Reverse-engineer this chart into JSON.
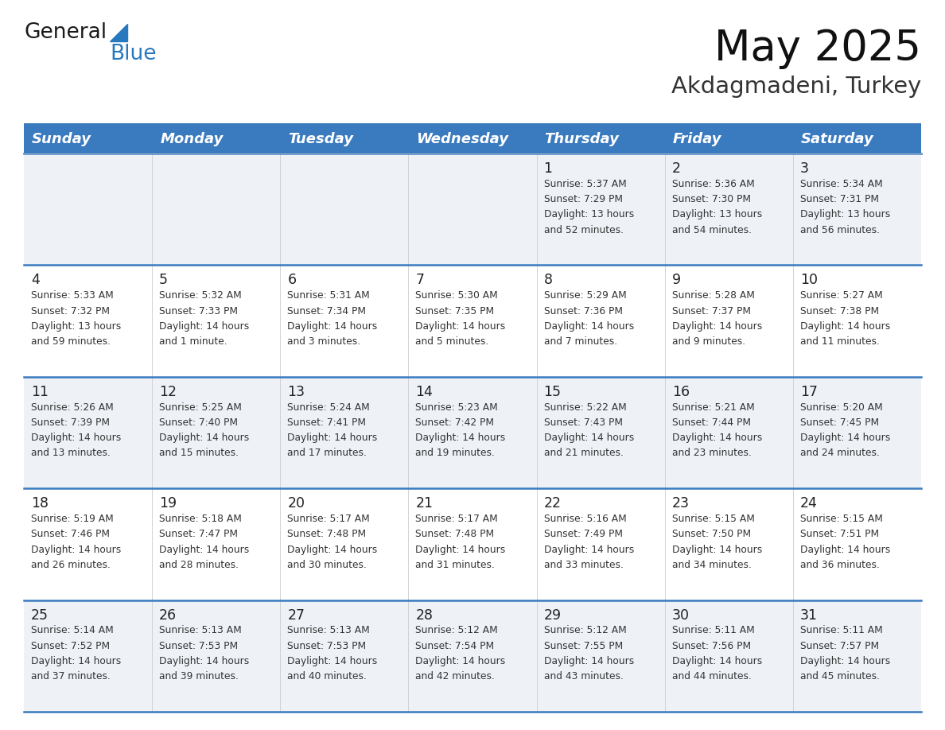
{
  "title": "May 2025",
  "subtitle": "Akdagmadeni, Turkey",
  "header_bg": "#3a7abf",
  "header_text": "#ffffff",
  "header_days": [
    "Sunday",
    "Monday",
    "Tuesday",
    "Wednesday",
    "Thursday",
    "Friday",
    "Saturday"
  ],
  "row_bg_even": "#eef2f7",
  "row_bg_odd": "#ffffff",
  "separator_color": "#3a7abf",
  "day_number_color": "#222222",
  "text_color": "#333333",
  "logo_general_color": "#1a1a1a",
  "logo_blue_color": "#2878bf",
  "calendar_data": [
    {
      "day": 1,
      "col": 4,
      "row": 0,
      "sunrise": "5:37 AM",
      "sunset": "7:29 PM",
      "daylight": "13 hours and 52 minutes."
    },
    {
      "day": 2,
      "col": 5,
      "row": 0,
      "sunrise": "5:36 AM",
      "sunset": "7:30 PM",
      "daylight": "13 hours and 54 minutes."
    },
    {
      "day": 3,
      "col": 6,
      "row": 0,
      "sunrise": "5:34 AM",
      "sunset": "7:31 PM",
      "daylight": "13 hours and 56 minutes."
    },
    {
      "day": 4,
      "col": 0,
      "row": 1,
      "sunrise": "5:33 AM",
      "sunset": "7:32 PM",
      "daylight": "13 hours and 59 minutes."
    },
    {
      "day": 5,
      "col": 1,
      "row": 1,
      "sunrise": "5:32 AM",
      "sunset": "7:33 PM",
      "daylight": "14 hours and 1 minute."
    },
    {
      "day": 6,
      "col": 2,
      "row": 1,
      "sunrise": "5:31 AM",
      "sunset": "7:34 PM",
      "daylight": "14 hours and 3 minutes."
    },
    {
      "day": 7,
      "col": 3,
      "row": 1,
      "sunrise": "5:30 AM",
      "sunset": "7:35 PM",
      "daylight": "14 hours and 5 minutes."
    },
    {
      "day": 8,
      "col": 4,
      "row": 1,
      "sunrise": "5:29 AM",
      "sunset": "7:36 PM",
      "daylight": "14 hours and 7 minutes."
    },
    {
      "day": 9,
      "col": 5,
      "row": 1,
      "sunrise": "5:28 AM",
      "sunset": "7:37 PM",
      "daylight": "14 hours and 9 minutes."
    },
    {
      "day": 10,
      "col": 6,
      "row": 1,
      "sunrise": "5:27 AM",
      "sunset": "7:38 PM",
      "daylight": "14 hours and 11 minutes."
    },
    {
      "day": 11,
      "col": 0,
      "row": 2,
      "sunrise": "5:26 AM",
      "sunset": "7:39 PM",
      "daylight": "14 hours and 13 minutes."
    },
    {
      "day": 12,
      "col": 1,
      "row": 2,
      "sunrise": "5:25 AM",
      "sunset": "7:40 PM",
      "daylight": "14 hours and 15 minutes."
    },
    {
      "day": 13,
      "col": 2,
      "row": 2,
      "sunrise": "5:24 AM",
      "sunset": "7:41 PM",
      "daylight": "14 hours and 17 minutes."
    },
    {
      "day": 14,
      "col": 3,
      "row": 2,
      "sunrise": "5:23 AM",
      "sunset": "7:42 PM",
      "daylight": "14 hours and 19 minutes."
    },
    {
      "day": 15,
      "col": 4,
      "row": 2,
      "sunrise": "5:22 AM",
      "sunset": "7:43 PM",
      "daylight": "14 hours and 21 minutes."
    },
    {
      "day": 16,
      "col": 5,
      "row": 2,
      "sunrise": "5:21 AM",
      "sunset": "7:44 PM",
      "daylight": "14 hours and 23 minutes."
    },
    {
      "day": 17,
      "col": 6,
      "row": 2,
      "sunrise": "5:20 AM",
      "sunset": "7:45 PM",
      "daylight": "14 hours and 24 minutes."
    },
    {
      "day": 18,
      "col": 0,
      "row": 3,
      "sunrise": "5:19 AM",
      "sunset": "7:46 PM",
      "daylight": "14 hours and 26 minutes."
    },
    {
      "day": 19,
      "col": 1,
      "row": 3,
      "sunrise": "5:18 AM",
      "sunset": "7:47 PM",
      "daylight": "14 hours and 28 minutes."
    },
    {
      "day": 20,
      "col": 2,
      "row": 3,
      "sunrise": "5:17 AM",
      "sunset": "7:48 PM",
      "daylight": "14 hours and 30 minutes."
    },
    {
      "day": 21,
      "col": 3,
      "row": 3,
      "sunrise": "5:17 AM",
      "sunset": "7:48 PM",
      "daylight": "14 hours and 31 minutes."
    },
    {
      "day": 22,
      "col": 4,
      "row": 3,
      "sunrise": "5:16 AM",
      "sunset": "7:49 PM",
      "daylight": "14 hours and 33 minutes."
    },
    {
      "day": 23,
      "col": 5,
      "row": 3,
      "sunrise": "5:15 AM",
      "sunset": "7:50 PM",
      "daylight": "14 hours and 34 minutes."
    },
    {
      "day": 24,
      "col": 6,
      "row": 3,
      "sunrise": "5:15 AM",
      "sunset": "7:51 PM",
      "daylight": "14 hours and 36 minutes."
    },
    {
      "day": 25,
      "col": 0,
      "row": 4,
      "sunrise": "5:14 AM",
      "sunset": "7:52 PM",
      "daylight": "14 hours and 37 minutes."
    },
    {
      "day": 26,
      "col": 1,
      "row": 4,
      "sunrise": "5:13 AM",
      "sunset": "7:53 PM",
      "daylight": "14 hours and 39 minutes."
    },
    {
      "day": 27,
      "col": 2,
      "row": 4,
      "sunrise": "5:13 AM",
      "sunset": "7:53 PM",
      "daylight": "14 hours and 40 minutes."
    },
    {
      "day": 28,
      "col": 3,
      "row": 4,
      "sunrise": "5:12 AM",
      "sunset": "7:54 PM",
      "daylight": "14 hours and 42 minutes."
    },
    {
      "day": 29,
      "col": 4,
      "row": 4,
      "sunrise": "5:12 AM",
      "sunset": "7:55 PM",
      "daylight": "14 hours and 43 minutes."
    },
    {
      "day": 30,
      "col": 5,
      "row": 4,
      "sunrise": "5:11 AM",
      "sunset": "7:56 PM",
      "daylight": "14 hours and 44 minutes."
    },
    {
      "day": 31,
      "col": 6,
      "row": 4,
      "sunrise": "5:11 AM",
      "sunset": "7:57 PM",
      "daylight": "14 hours and 45 minutes."
    }
  ]
}
